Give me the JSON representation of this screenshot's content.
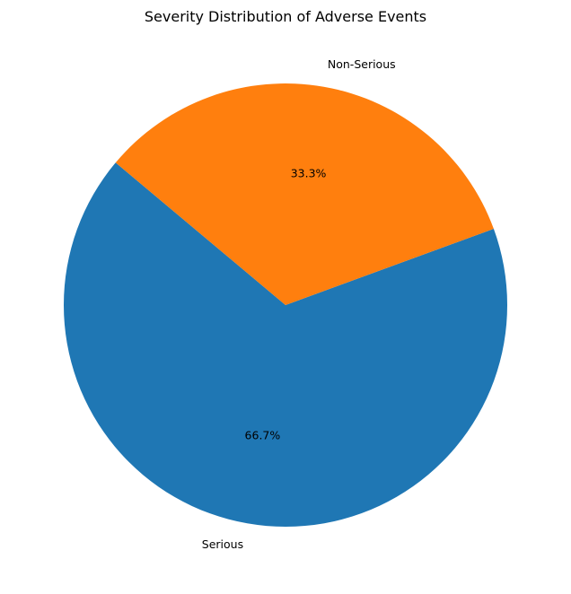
{
  "chart_data": {
    "type": "pie",
    "title": "Severity Distribution of Adverse Events",
    "categories": [
      "Serious",
      "Non-Serious"
    ],
    "values": [
      66.7,
      33.3
    ],
    "percent_labels": [
      "66.7%",
      "33.3%"
    ],
    "colors": [
      "#1f77b4",
      "#ff7f0e"
    ],
    "start_angle_deg": 140,
    "direction": "counterclockwise",
    "legend": "none"
  }
}
